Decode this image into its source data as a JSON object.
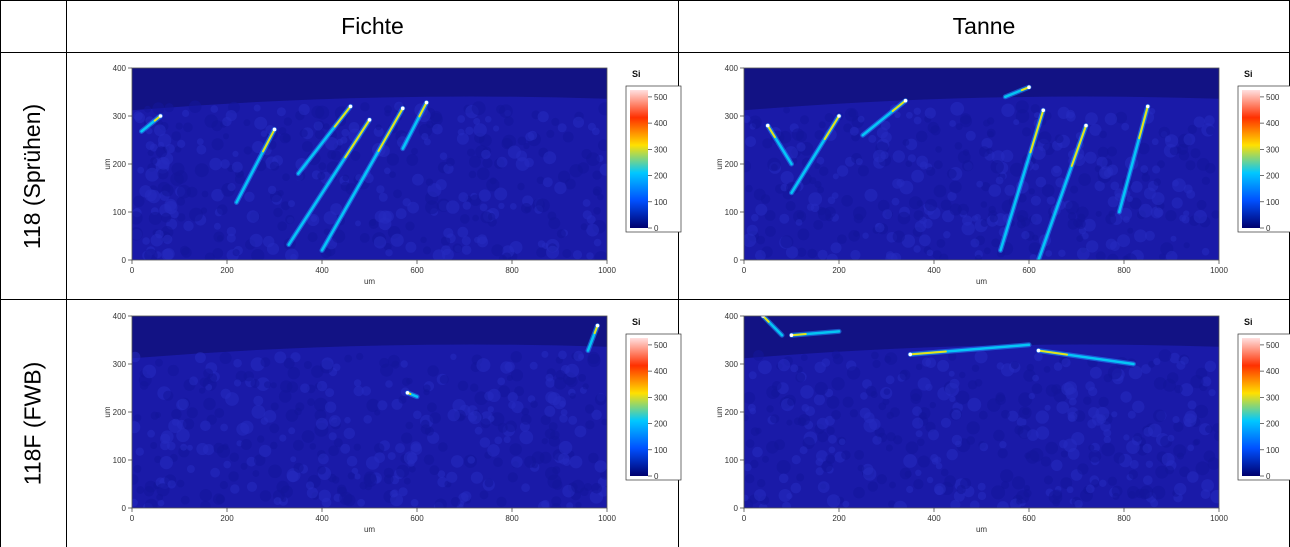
{
  "columns": [
    "Fichte",
    "Tanne"
  ],
  "rows": [
    "118 (Sprühen)",
    "118F (FWB)"
  ],
  "element": "Si",
  "x_axis": {
    "label": "um",
    "ticks": [
      "0",
      "200",
      "400",
      "600",
      "800",
      "1000"
    ]
  },
  "y_axis": {
    "label": "um",
    "ticks": [
      "0",
      "100",
      "200",
      "300",
      "400"
    ]
  },
  "colorbar": {
    "ticks": [
      "0",
      "100",
      "200",
      "300",
      "400",
      "500"
    ]
  },
  "colors": {
    "background": "#1a1aa8",
    "colorbar_stops": [
      "#00006e",
      "#0050ff",
      "#00c8ff",
      "#ffe000",
      "#ff3000",
      "#ffe0e0"
    ]
  }
}
